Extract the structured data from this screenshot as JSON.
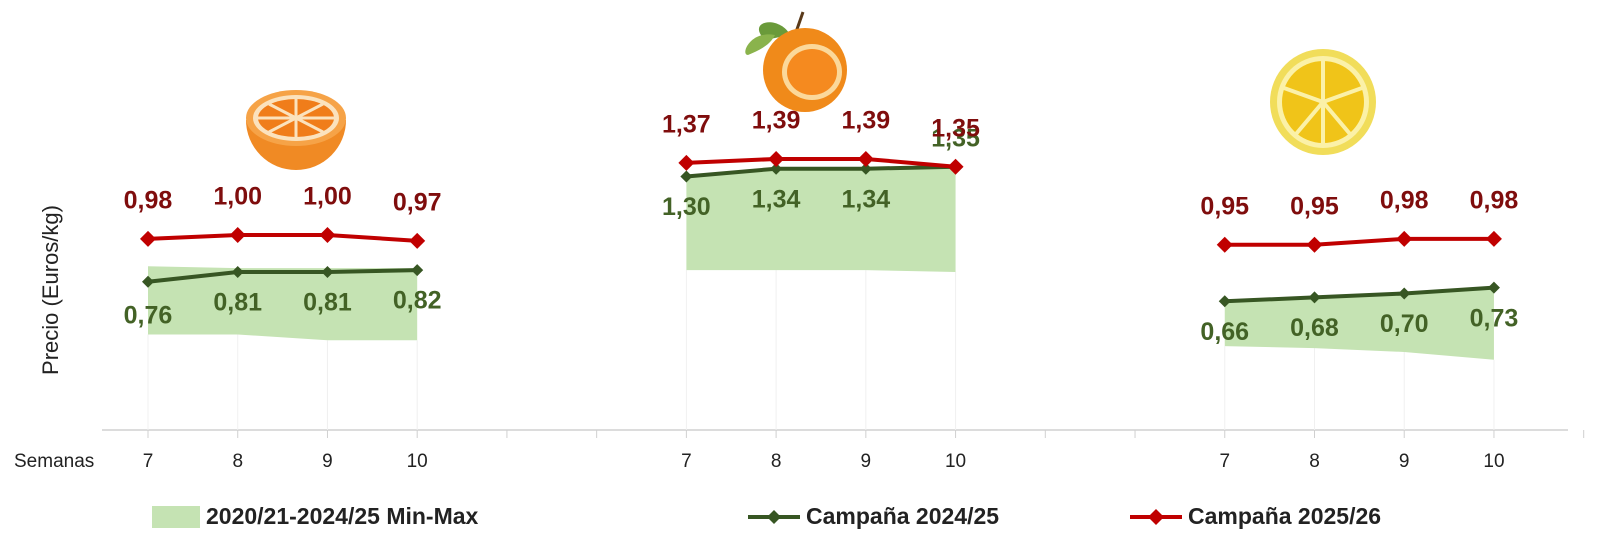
{
  "chart_data": {
    "type": "line",
    "y_label": "Precio (Euros/kg)",
    "x_label": "Semanas",
    "categories": [
      "7",
      "8",
      "9",
      "10",
      null,
      null,
      "7",
      "8",
      "9",
      "10",
      null,
      null,
      "7",
      "8",
      "9",
      "10"
    ],
    "ylim": [
      0,
      2.2
    ],
    "range": {
      "name": "2020/21-2024/25 Min-Max",
      "color": "#c5e3b3",
      "min": [
        0.49,
        0.49,
        0.46,
        0.46,
        null,
        null,
        0.82,
        0.82,
        0.82,
        0.81,
        null,
        null,
        0.43,
        0.42,
        0.4,
        0.36
      ],
      "max": [
        0.84,
        0.83,
        0.83,
        0.83,
        null,
        null,
        1.3,
        1.34,
        1.34,
        1.35,
        null,
        null,
        0.66,
        0.68,
        0.7,
        0.73
      ]
    },
    "series": [
      {
        "name": "Campaña 2024/25",
        "color": "#375623",
        "label_color": "#436226",
        "values": [
          0.76,
          0.81,
          0.81,
          0.82,
          null,
          null,
          1.3,
          1.34,
          1.34,
          1.35,
          null,
          null,
          0.66,
          0.68,
          0.7,
          0.73
        ],
        "value_labels": [
          "0,76",
          "0,81",
          "0,81",
          "0,82",
          null,
          null,
          "1,30",
          "1,34",
          "1,34",
          "1,35",
          null,
          null,
          "0,66",
          "0,68",
          "0,70",
          "0,73"
        ]
      },
      {
        "name": "Campaña 2025/26",
        "color": "#c00000",
        "label_color": "#7f0d0d",
        "values": [
          0.98,
          1.0,
          1.0,
          0.97,
          null,
          null,
          1.37,
          1.39,
          1.39,
          1.35,
          null,
          null,
          0.95,
          0.95,
          0.98,
          0.98
        ],
        "value_labels": [
          "0,98",
          "1,00",
          "1,00",
          "0,97",
          null,
          null,
          "1,37",
          "1,39",
          "1,39",
          "1,35",
          null,
          null,
          "0,95",
          "0,95",
          "0,98",
          "0,98"
        ]
      }
    ]
  }
}
